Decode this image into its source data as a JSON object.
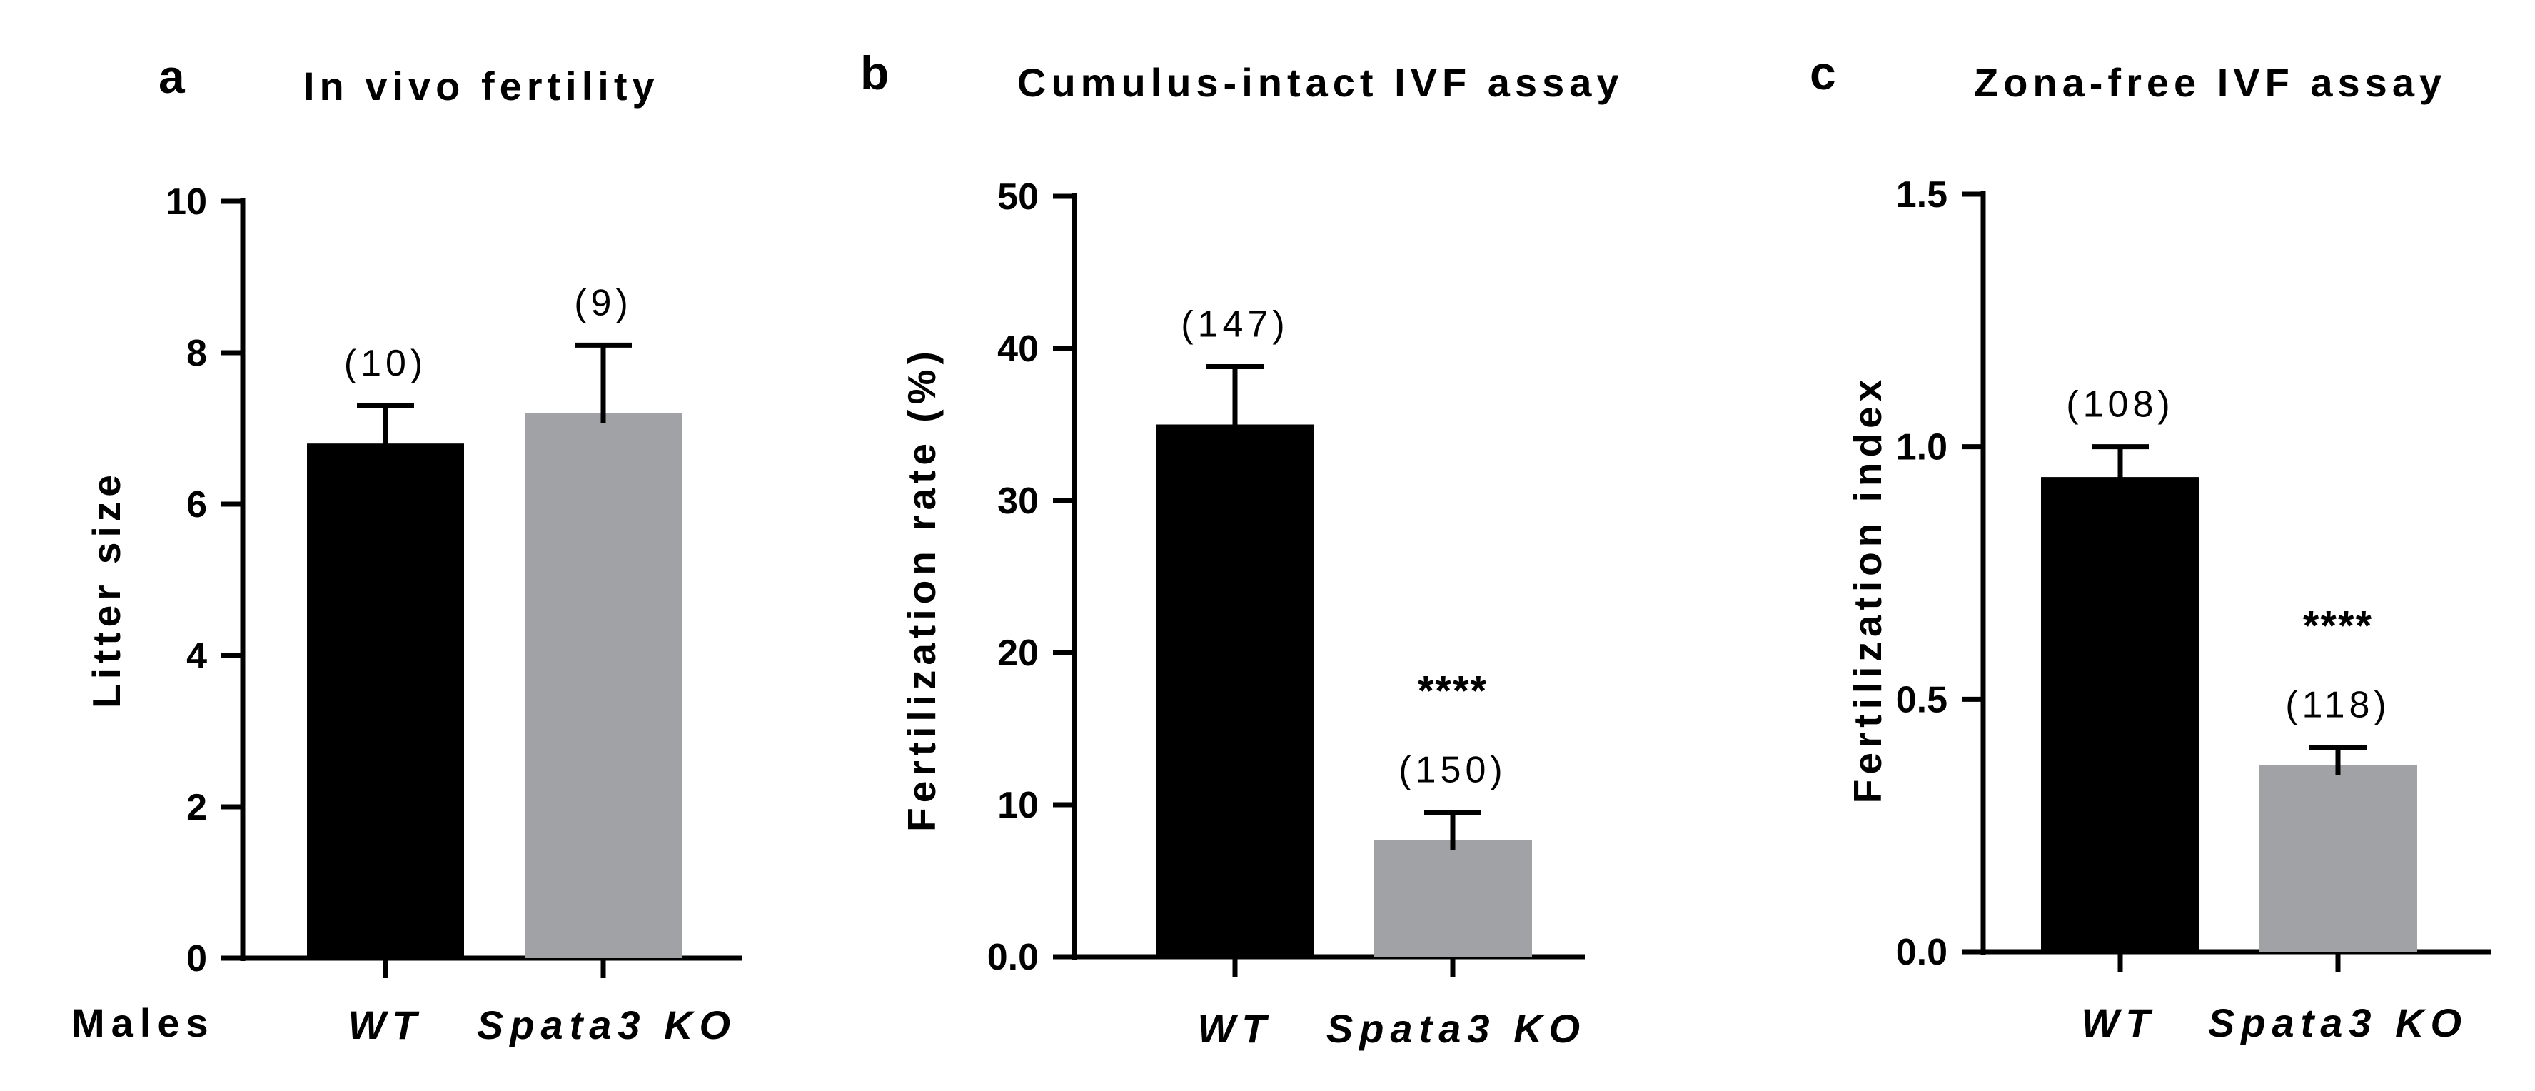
{
  "males_label": "Males",
  "colors": {
    "wt": "#000000",
    "ko": "#a1a2a6",
    "axis": "#000000"
  },
  "chart_data": [
    {
      "type": "bar",
      "panel": "a",
      "title": "In vivo fertility",
      "ylabel": "Litter size",
      "ylim": [
        0,
        10
      ],
      "yticks": [
        0,
        2,
        4,
        6,
        8,
        10
      ],
      "ytick_labels": [
        "0",
        "2",
        "4",
        "6",
        "8",
        "10"
      ],
      "categories": [
        "WT",
        "Spata3 KO"
      ],
      "values": [
        6.8,
        7.2
      ],
      "errors": [
        0.5,
        0.9
      ],
      "n_labels": [
        "(10)",
        "(9)"
      ],
      "significance": [
        "",
        ""
      ]
    },
    {
      "type": "bar",
      "panel": "b",
      "title": "Cumulus-intact IVF assay",
      "ylabel": "Fertilization rate (%)",
      "ylim": [
        0,
        50
      ],
      "yticks": [
        0,
        10,
        20,
        30,
        40,
        50
      ],
      "ytick_labels": [
        "0.0",
        "10",
        "20",
        "30",
        "40",
        "50"
      ],
      "categories": [
        "WT",
        "Spata3 KO"
      ],
      "values": [
        35,
        7.7
      ],
      "errors": [
        3.8,
        1.8
      ],
      "n_labels": [
        "(147)",
        "(150)"
      ],
      "significance": [
        "",
        "****"
      ]
    },
    {
      "type": "bar",
      "panel": "c",
      "title": "Zona-free IVF assay",
      "ylabel": "Fertilization index",
      "ylim": [
        0,
        1.5
      ],
      "yticks": [
        0,
        0.5,
        1.0,
        1.5
      ],
      "ytick_labels": [
        "0.0",
        "0.5",
        "1.0",
        "1.5"
      ],
      "categories": [
        "WT",
        "Spata3 KO"
      ],
      "values": [
        0.94,
        0.37
      ],
      "errors": [
        0.06,
        0.035
      ],
      "n_labels": [
        "(108)",
        "(118)"
      ],
      "significance": [
        "",
        "****"
      ]
    }
  ]
}
